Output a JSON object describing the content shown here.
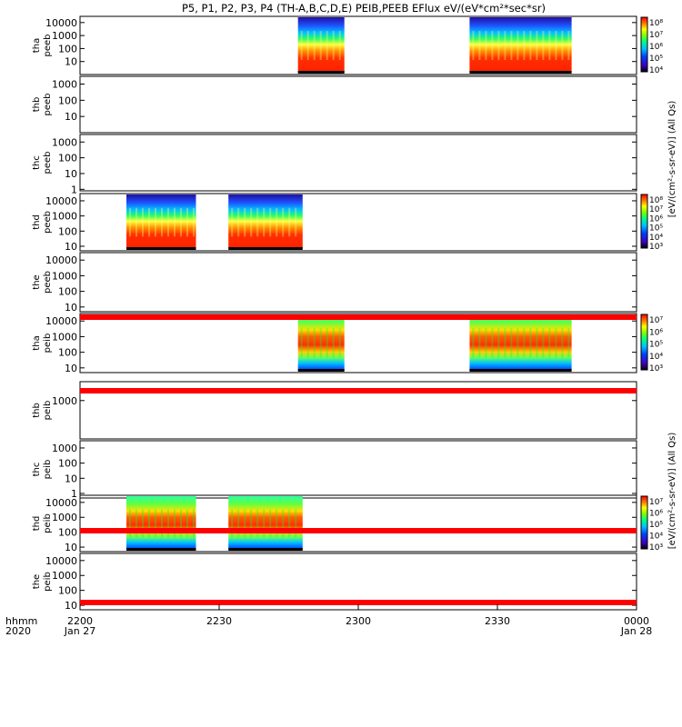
{
  "title": "P5, P1, P2, P3, P4 (TH-A,B,C,D,E) PEIB,PEEB EFlux eV/(eV*cm²*sec*sr)",
  "chart_data": {
    "type": "heatmap",
    "title": "P5, P1, P2, P3, P4 (TH-A,B,C,D,E) PEIB,PEEB EFlux eV/(eV*cm²*sec*sr)",
    "x_axis": {
      "range_minutes": [
        0,
        120
      ],
      "ticks": [
        {
          "minute": 0,
          "label": "2200",
          "sub": "Jan 27"
        },
        {
          "minute": 30,
          "label": "2230",
          "sub": ""
        },
        {
          "minute": 60,
          "label": "2300",
          "sub": ""
        },
        {
          "minute": 90,
          "label": "2330",
          "sub": ""
        },
        {
          "minute": 120,
          "label": "0000",
          "sub": "Jan 28"
        }
      ],
      "left_labels": [
        "hhmm",
        "2020"
      ]
    },
    "colorscale": [
      "#ffffff",
      "#ff0000",
      "#ff8000",
      "#ffff00",
      "#80ff00",
      "#00ff80",
      "#00c0ff",
      "#0040ff",
      "#4000c0",
      "#000000"
    ],
    "panels": [
      {
        "probe": "tha",
        "product": "peeb",
        "label": [
          "tha",
          "peeb"
        ],
        "yticks": [
          "10000",
          "1000",
          "100",
          "10"
        ],
        "ymin": 1,
        "ymax": 30000,
        "blocks": [
          {
            "start": 47,
            "end": 57
          },
          {
            "start": 84,
            "end": 106
          }
        ],
        "colorbar": {
          "ticks": [
            "10⁸",
            "10⁷",
            "10⁶",
            "10⁵",
            "10⁴"
          ],
          "label": ""
        }
      },
      {
        "probe": "thb",
        "product": "peeb",
        "label": [
          "thb",
          "peeb"
        ],
        "yticks": [
          "1000",
          "100",
          "10"
        ],
        "ymin": 1,
        "ymax": 3000,
        "blocks": [],
        "colorbar": null
      },
      {
        "probe": "thc",
        "product": "peeb",
        "label": [
          "thc",
          "peeb"
        ],
        "yticks": [
          "1000",
          "100",
          "10",
          "1"
        ],
        "ymin": 0.8,
        "ymax": 3000,
        "blocks": [],
        "colorbar": null
      },
      {
        "probe": "thd",
        "product": "peeb",
        "label": [
          "thd",
          "peeb"
        ],
        "yticks": [
          "10000",
          "1000",
          "100",
          "10"
        ],
        "ymin": 5,
        "ymax": 30000,
        "blocks": [
          {
            "start": 10,
            "end": 25
          },
          {
            "start": 32,
            "end": 48
          }
        ],
        "colorbar": {
          "ticks": [
            "10⁸",
            "10⁷",
            "10⁶",
            "10⁵",
            "10⁴",
            "10³"
          ],
          "label": "[eV/(cm²-s-sr-eV)] (All Qs)"
        }
      },
      {
        "probe": "the",
        "product": "peeb",
        "label": [
          "the",
          "peeb"
        ],
        "yticks": [
          "10000",
          "1000",
          "100",
          "10"
        ],
        "ymin": 5,
        "ymax": 30000,
        "blocks": [],
        "colorbar": null
      },
      {
        "probe": "tha",
        "product": "peib",
        "label": [
          "tha",
          "peib"
        ],
        "yticks": [
          "10000",
          "1000",
          "100",
          "10"
        ],
        "ymin": 5,
        "ymax": 30000,
        "blocks": [
          {
            "start": 47,
            "end": 57
          },
          {
            "start": 84,
            "end": 106
          }
        ],
        "colorbar": {
          "ticks": [
            "10⁷",
            "10⁶",
            "10⁵",
            "10⁴",
            "10³"
          ],
          "label": ""
        }
      },
      {
        "probe": "thb",
        "product": "peib",
        "label": [
          "thb",
          "peib"
        ],
        "yticks": [
          "1000"
        ],
        "ymin": 1,
        "ymax": 30000,
        "blocks": [],
        "colorbar": null
      },
      {
        "probe": "thc",
        "product": "peib",
        "label": [
          "thc",
          "peib"
        ],
        "yticks": [
          "1000",
          "100",
          "10",
          "1"
        ],
        "ymin": 0.5,
        "ymax": 3000,
        "blocks": [],
        "colorbar": null
      },
      {
        "probe": "thd",
        "product": "peib",
        "label": [
          "thd",
          "peib"
        ],
        "yticks": [
          "10000",
          "1000",
          "100",
          "10"
        ],
        "ymin": 5,
        "ymax": 30000,
        "blocks": [
          {
            "start": 10,
            "end": 25
          },
          {
            "start": 32,
            "end": 48
          }
        ],
        "colorbar": {
          "ticks": [
            "10⁷",
            "10⁶",
            "10⁵",
            "10⁴",
            "10³"
          ],
          "label": "[eV/(cm²-s-sr-eV)] (All Qs)"
        }
      },
      {
        "probe": "the",
        "product": "peib",
        "label": [
          "the",
          "peib"
        ],
        "yticks": [
          "10000",
          "1000",
          "100",
          "10"
        ],
        "ymin": 5,
        "ymax": 30000,
        "blocks": [],
        "colorbar": null
      }
    ],
    "side_labels": [
      "[eV/(cm²-s-sr-eV)] (All Qs)",
      "[eV/(cm²-s-sr-eV)] (All Qs)"
    ]
  }
}
